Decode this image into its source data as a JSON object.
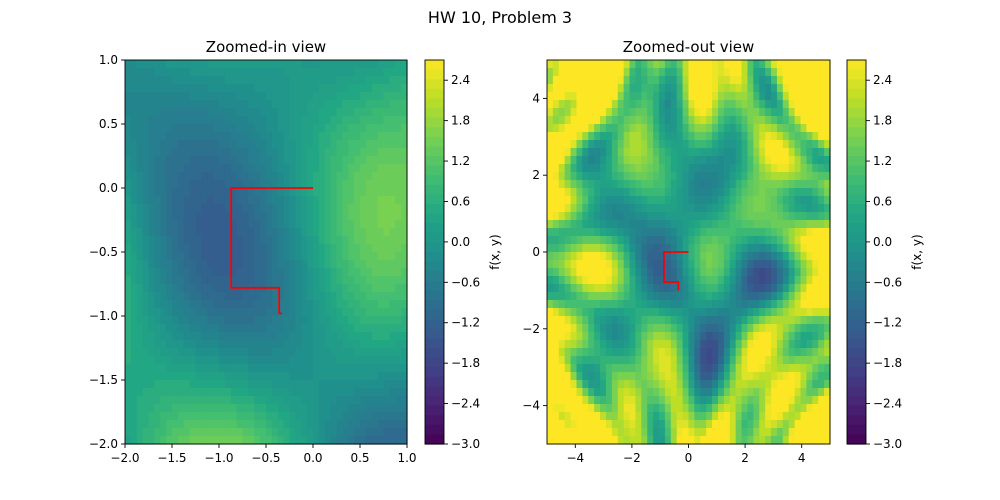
{
  "figure": {
    "suptitle": "HW 10, Problem 3"
  },
  "chart_data": [
    {
      "type": "heatmap",
      "title": "Zoomed-in view",
      "xlabel": "",
      "ylabel": "",
      "xlim": [
        -2.0,
        1.0
      ],
      "ylim": [
        -2.0,
        1.0
      ],
      "xticks": [
        -2.0,
        -1.5,
        -1.0,
        -0.5,
        0.0,
        0.5,
        1.0
      ],
      "xtick_labels": [
        "−2.0",
        "−1.5",
        "−1.0",
        "−0.5",
        "0.0",
        "0.5",
        "1.0"
      ],
      "yticks": [
        -2.0,
        -1.5,
        -1.0,
        -0.5,
        0.0,
        0.5,
        1.0
      ],
      "ytick_labels": [
        "−2.0",
        "−1.5",
        "−1.0",
        "−0.5",
        "0.0",
        "0.5",
        "1.0"
      ],
      "colorbar": {
        "label": "f(x, y)",
        "range": [
          -3.0,
          2.7
        ],
        "ticks": [
          -3.0,
          -2.4,
          -1.8,
          -1.2,
          -0.6,
          0.0,
          0.6,
          1.2,
          1.8,
          2.4
        ],
        "tick_labels": [
          "−3.0",
          "−2.4",
          "−1.8",
          "−1.2",
          "−0.6",
          "0.0",
          "0.6",
          "1.2",
          "1.8",
          "2.4"
        ]
      },
      "path": {
        "color": "#ff0000",
        "x": [
          0.0,
          -0.87,
          -0.87,
          -0.36,
          -0.36,
          -0.33
        ],
        "y": [
          0.0,
          0.0,
          -0.78,
          -0.78,
          -0.98,
          -0.98
        ]
      }
    },
    {
      "type": "heatmap",
      "title": "Zoomed-out view",
      "xlabel": "",
      "ylabel": "",
      "xlim": [
        -5.0,
        5.0
      ],
      "ylim": [
        -5.0,
        5.0
      ],
      "xticks": [
        -4,
        -2,
        0,
        2,
        4
      ],
      "xtick_labels": [
        "−4",
        "−2",
        "0",
        "2",
        "4"
      ],
      "yticks": [
        -4,
        -2,
        0,
        2,
        4
      ],
      "ytick_labels": [
        "−4",
        "−2",
        "0",
        "2",
        "4"
      ],
      "colorbar": {
        "label": "f(x, y)",
        "range": [
          -3.0,
          2.7
        ],
        "ticks": [
          -3.0,
          -2.4,
          -1.8,
          -1.2,
          -0.6,
          0.0,
          0.6,
          1.2,
          1.8,
          2.4
        ],
        "tick_labels": [
          "−3.0",
          "−2.4",
          "−1.8",
          "−1.2",
          "−0.6",
          "0.0",
          "0.6",
          "1.2",
          "1.8",
          "2.4"
        ]
      },
      "path": {
        "color": "#ff0000",
        "x": [
          0.0,
          -0.87,
          -0.87,
          -0.36,
          -0.36,
          -0.33
        ],
        "y": [
          0.0,
          0.0,
          -0.78,
          -0.78,
          -0.98,
          -0.98
        ]
      }
    }
  ]
}
